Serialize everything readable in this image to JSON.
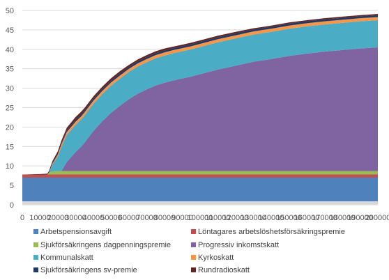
{
  "chart_data": {
    "type": "area",
    "stacked": true,
    "title": "",
    "xlabel": "",
    "ylabel": "",
    "ylim": [
      0,
      50
    ],
    "yticks": [
      0,
      5,
      10,
      15,
      20,
      25,
      30,
      35,
      40,
      45,
      50
    ],
    "xlim": [
      0,
      200000
    ],
    "xticks": [
      "0",
      "10000",
      "20000",
      "30000",
      "40000",
      "50000",
      "60000",
      "70000",
      "80000",
      "90000",
      "100000",
      "110000",
      "120000",
      "130000",
      "140000",
      "150000",
      "160000",
      "170000",
      "180000",
      "190000",
      "200000"
    ],
    "grid": true,
    "legend_position": "bottom",
    "x": [
      0,
      500,
      1000,
      10000,
      14000,
      15000,
      17000,
      20000,
      22000,
      25000,
      30000,
      33000,
      35000,
      40000,
      45000,
      50000,
      55000,
      60000,
      65000,
      70000,
      75000,
      80000,
      85000,
      90000,
      95000,
      100000,
      110000,
      120000,
      130000,
      140000,
      150000,
      160000,
      170000,
      180000,
      190000,
      200000
    ],
    "series": [
      {
        "name": "Arbetspensionsavgift",
        "color": "#4f81bd",
        "values": [
          7.0,
          7.0,
          7.0,
          7.0,
          7.0,
          7.0,
          7.0,
          7.0,
          7.0,
          7.0,
          7.0,
          7.0,
          7.0,
          7.0,
          7.0,
          7.0,
          7.0,
          7.0,
          7.0,
          7.0,
          7.0,
          7.0,
          7.0,
          7.0,
          7.0,
          7.0,
          7.0,
          7.0,
          7.0,
          7.0,
          7.0,
          7.0,
          7.0,
          7.0,
          7.0,
          7.0
        ]
      },
      {
        "name": "Löntagares arbetslöshetsförsäkringspremie",
        "color": "#c0504d",
        "values": [
          0.8,
          0.8,
          0.8,
          0.8,
          0.8,
          0.8,
          0.8,
          0.8,
          0.8,
          0.8,
          0.8,
          0.8,
          0.8,
          0.8,
          0.8,
          0.8,
          0.8,
          0.8,
          0.8,
          0.8,
          0.8,
          0.8,
          0.8,
          0.8,
          0.8,
          0.8,
          0.8,
          0.8,
          0.8,
          0.8,
          0.8,
          0.8,
          0.8,
          0.8,
          0.8,
          0.8
        ]
      },
      {
        "name": "Sjukförsäkringens dagpenningspremie",
        "color": "#9bbb59",
        "values": [
          0,
          0,
          0,
          0,
          0,
          0.5,
          0.8,
          0.9,
          0.9,
          0.9,
          0.9,
          0.9,
          0.9,
          0.9,
          0.9,
          0.9,
          0.9,
          0.9,
          0.9,
          0.9,
          0.9,
          0.9,
          0.9,
          0.9,
          0.9,
          0.9,
          0.9,
          0.9,
          0.9,
          0.9,
          0.9,
          0.9,
          0.9,
          0.9,
          0.9,
          0.9
        ]
      },
      {
        "name": "Progressiv inkomstskatt",
        "color": "#8064a2",
        "values": [
          0,
          0,
          0,
          0,
          0,
          0,
          0,
          0,
          0,
          2.3,
          4.9,
          6.2,
          7.3,
          10.3,
          12.8,
          15.0,
          16.8,
          18.5,
          19.9,
          21.0,
          22.0,
          22.7,
          23.3,
          23.8,
          24.3,
          24.9,
          26.1,
          27.1,
          28.1,
          28.8,
          29.6,
          30.2,
          30.7,
          31.1,
          31.5,
          31.8
        ]
      },
      {
        "name": "Kommunalskatt",
        "color": "#4bacc6",
        "values": [
          0,
          0,
          0,
          0,
          0,
          0,
          1.8,
          3.8,
          6.2,
          7.0,
          7.0,
          7.0,
          7.0,
          7.0,
          7.0,
          7.0,
          7.0,
          7.0,
          7.0,
          7.0,
          7.0,
          7.0,
          7.0,
          7.0,
          7.0,
          7.0,
          7.0,
          7.0,
          7.0,
          7.0,
          7.0,
          7.0,
          7.0,
          7.0,
          7.0,
          7.0
        ]
      },
      {
        "name": "Kyrkoskatt",
        "color": "#f79646",
        "values": [
          0,
          0,
          0,
          0,
          0,
          0,
          0.2,
          0.4,
          0.6,
          0.7,
          0.8,
          0.8,
          0.8,
          0.8,
          0.8,
          0.8,
          0.8,
          0.8,
          0.8,
          0.8,
          0.8,
          0.8,
          0.8,
          0.8,
          0.8,
          0.8,
          0.8,
          0.8,
          0.8,
          0.8,
          0.8,
          0.8,
          0.8,
          0.8,
          0.8,
          0.8
        ]
      },
      {
        "name": "Sjukförsäkringens sv-premie",
        "color": "#1f3864",
        "values": [
          0,
          0,
          0,
          0,
          0,
          0,
          0.1,
          0.2,
          0.3,
          0.4,
          0.5,
          0.5,
          0.5,
          0.5,
          0.5,
          0.5,
          0.5,
          0.5,
          0.5,
          0.5,
          0.5,
          0.5,
          0.5,
          0.5,
          0.5,
          0.5,
          0.5,
          0.5,
          0.5,
          0.5,
          0.5,
          0.5,
          0.5,
          0.5,
          0.5,
          0.5
        ]
      },
      {
        "name": "Rundradioskatt",
        "color": "#632523",
        "values": [
          0,
          0,
          0,
          0.1,
          0.2,
          0.4,
          0.6,
          0.7,
          0.7,
          0.7,
          0.7,
          0.7,
          0.6,
          0.6,
          0.6,
          0.6,
          0.6,
          0.5,
          0.5,
          0.5,
          0.5,
          0.5,
          0.4,
          0.4,
          0.4,
          0.4,
          0.4,
          0.4,
          0.3,
          0.3,
          0.3,
          0.3,
          0.3,
          0.3,
          0.3,
          0.3
        ]
      }
    ]
  }
}
